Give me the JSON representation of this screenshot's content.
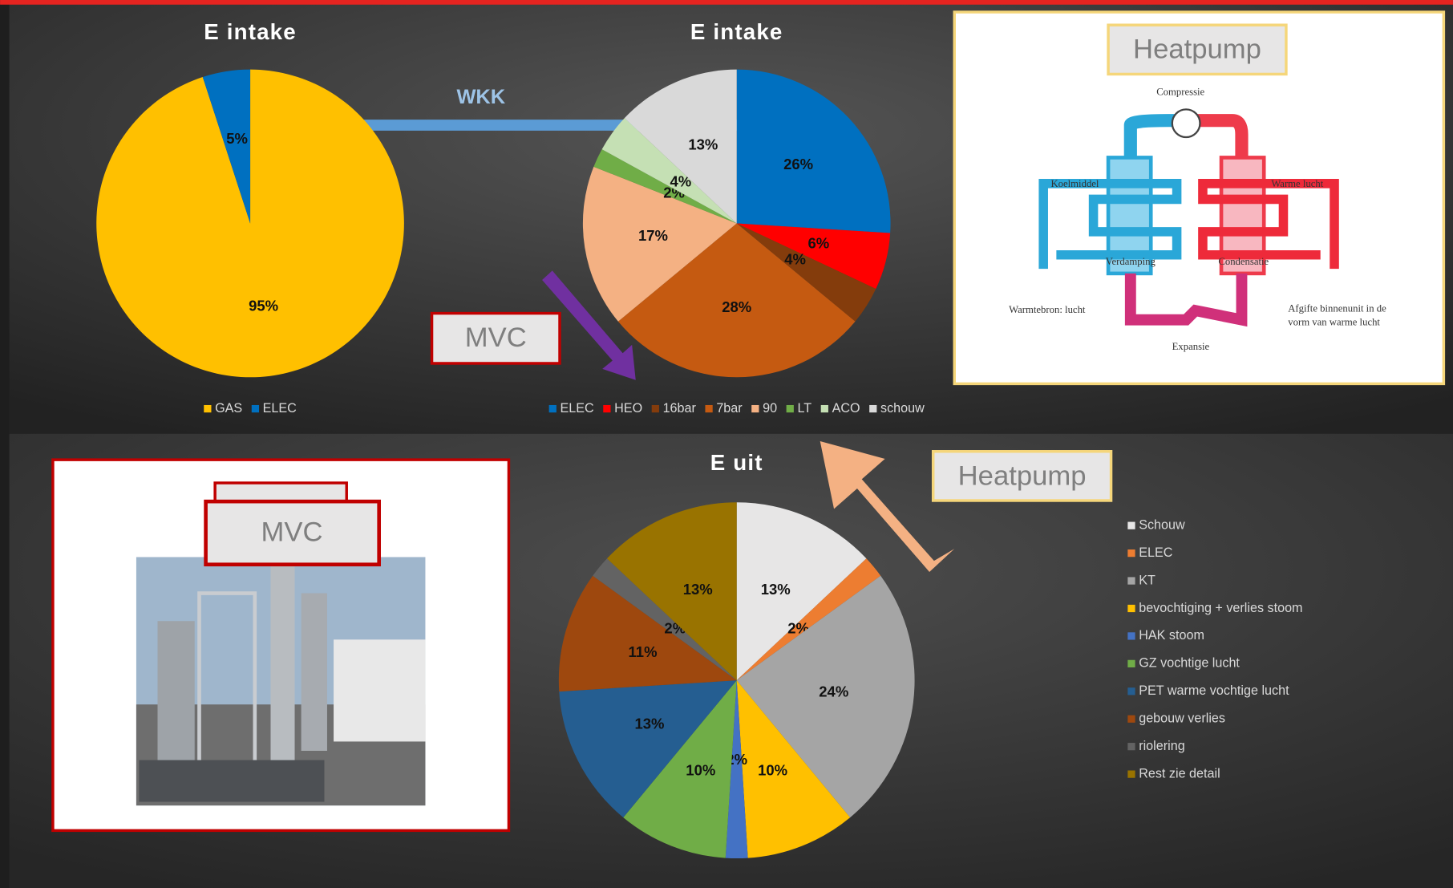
{
  "chart_data": [
    {
      "type": "pie",
      "title": "E intake",
      "legend": "bottom",
      "categories": [
        "GAS",
        "ELEC"
      ],
      "values": [
        95,
        5
      ],
      "value_labels": [
        "95%",
        "5%"
      ],
      "colors": [
        "#ffc000",
        "#0070c0"
      ]
    },
    {
      "type": "pie",
      "title": "E intake",
      "legend": "bottom",
      "categories": [
        "ELEC",
        "HEO",
        "16bar",
        "7bar",
        "90",
        "LT",
        "ACO",
        "schouw"
      ],
      "values": [
        26,
        6,
        4,
        28,
        17,
        2,
        4,
        13
      ],
      "value_labels": [
        "26%",
        "6%",
        "4%",
        "28%",
        "17%",
        "2%",
        "4%",
        "13%"
      ],
      "colors": [
        "#0070c0",
        "#ff0000",
        "#843c0c",
        "#c55a11",
        "#f4b183",
        "#70ad47",
        "#c5e0b4",
        "#d9d9d9"
      ]
    },
    {
      "type": "pie",
      "title": "E uit",
      "legend": "right",
      "categories": [
        "Schouw",
        "ELEC",
        "KT",
        "bevochtiging + verlies stoom",
        "HAK stoom",
        "GZ vochtige lucht",
        "PET warme vochtige lucht",
        "gebouw verlies",
        "riolering",
        "Rest zie detail"
      ],
      "values": [
        13,
        2,
        24,
        10,
        2,
        10,
        13,
        11,
        2,
        13
      ],
      "value_labels": [
        "13%",
        "2%",
        "24%",
        "10%",
        "2%",
        "10%",
        "13%",
        "11%",
        "2%",
        "13%"
      ],
      "colors": [
        "#e7e6e6",
        "#ed7d31",
        "#a5a5a5",
        "#ffc000",
        "#4472c4",
        "#70ad47",
        "#255e91",
        "#9e480e",
        "#636363",
        "#997300"
      ]
    }
  ],
  "labels": {
    "wkk": "WKK",
    "mvc_top": "MVC",
    "heatpump_top": "Heatpump",
    "heatpump_bottom": "Heatpump",
    "mvc_photo": "MVC"
  },
  "heatpump_diagram": {
    "compressor": "Compressie",
    "coolant": "Koelmiddel",
    "warm_air": "Warme lucht",
    "evaporation": "Verdamping",
    "condensation": "Condensatie",
    "source": "Warmtebron: lucht",
    "output": "Afgifte binnenunit in de vorm van warme lucht",
    "expansion": "Expansie"
  }
}
